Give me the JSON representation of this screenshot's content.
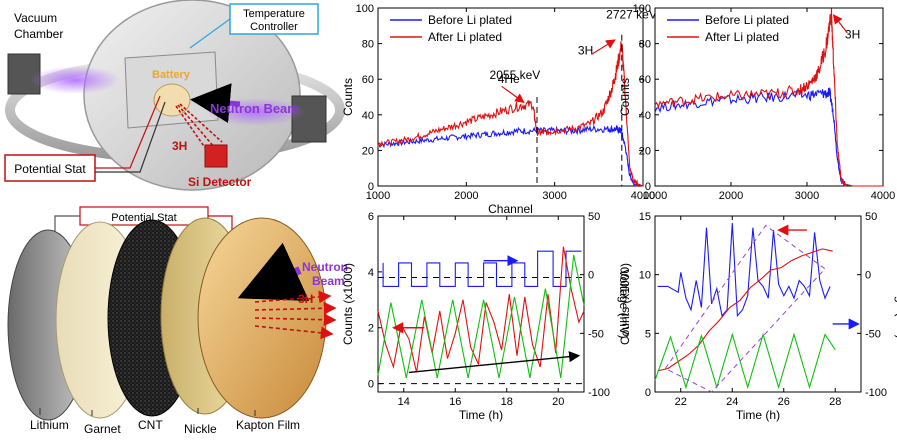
{
  "illustration": {
    "top": {
      "chamber_label_1": "Vacuum",
      "chamber_label_2": "Chamber",
      "temp_label_1": "Temperature",
      "temp_label_2": "Controller",
      "battery_label": "Battery",
      "beam_label": "Neutron Beam",
      "triton_label": "3H",
      "potential_label": "Potential Stat",
      "detector_label": "Si Detector"
    },
    "bottom": {
      "potential_label": "Potential Stat",
      "beam_label_1": "Neutron",
      "beam_label_2": "Beam",
      "triton_label": "3H",
      "layers": [
        "Lithium",
        "Garnet",
        "CNT",
        "Nickle",
        "Kapton Film"
      ]
    }
  },
  "chart_data": [
    {
      "id": "top-middle",
      "type": "line",
      "xlabel": "Channel",
      "ylabel": "Counts",
      "xlim": [
        1000,
        4000
      ],
      "ylim": [
        0,
        100
      ],
      "xticks": [
        1000,
        2000,
        3000,
        4000
      ],
      "yticks": [
        0,
        20,
        40,
        60,
        80,
        100
      ],
      "legend": "top-left",
      "series": [
        {
          "name": "Before Li plated",
          "color": "#1a1aff",
          "x": [
            1000,
            1200,
            1400,
            1600,
            1800,
            2000,
            2200,
            2400,
            2600,
            2800,
            3000,
            3200,
            3400,
            3600,
            3700,
            3750,
            3800,
            3850,
            3900,
            4000
          ],
          "y": [
            23,
            24,
            25,
            26,
            27,
            28,
            29,
            30,
            31,
            31,
            31,
            31,
            32,
            32,
            32,
            31,
            22,
            6,
            1,
            0
          ]
        },
        {
          "name": "After Li plated",
          "color": "#e01010",
          "x": [
            1000,
            1200,
            1400,
            1600,
            1800,
            2000,
            2200,
            2400,
            2600,
            2750,
            2800,
            2900,
            3000,
            3200,
            3400,
            3550,
            3650,
            3700,
            3760,
            3800,
            3850,
            3900,
            4000
          ],
          "y": [
            24,
            25,
            27,
            30,
            33,
            36,
            39,
            42,
            45,
            46,
            30,
            30,
            31,
            32,
            35,
            42,
            55,
            65,
            80,
            50,
            10,
            2,
            0
          ]
        }
      ],
      "annotations": [
        {
          "text": "4He",
          "x": 2480,
          "y": 58
        },
        {
          "text": "2055 keV",
          "x": 2550,
          "y": 60
        },
        {
          "text": "2727 keV",
          "x": 3870,
          "y": 94
        },
        {
          "text": "3H",
          "x": 3350,
          "y": 74
        }
      ]
    },
    {
      "id": "top-right",
      "type": "line",
      "xlabel": "",
      "ylabel": "Counts",
      "xlim": [
        1000,
        4000
      ],
      "ylim": [
        0,
        100
      ],
      "xticks": [
        1000,
        2000,
        3000,
        4000
      ],
      "yticks": [
        0,
        20,
        40,
        60,
        80,
        100
      ],
      "legend": "top-left",
      "series": [
        {
          "name": "Before Li plated",
          "color": "#1a1aff",
          "x": [
            1000,
            1400,
            1800,
            2200,
            2600,
            3000,
            3200,
            3300,
            3350,
            3400,
            3450,
            3500,
            3600,
            4000
          ],
          "y": [
            44,
            46,
            48,
            49,
            50,
            51,
            52,
            52,
            40,
            15,
            3,
            1,
            0,
            0
          ]
        },
        {
          "name": "After Li plated",
          "color": "#e01010",
          "x": [
            1000,
            1400,
            1800,
            2200,
            2600,
            2900,
            3050,
            3150,
            3250,
            3320,
            3360,
            3400,
            3450,
            3500,
            3600,
            4000
          ],
          "y": [
            46,
            48,
            50,
            51,
            52,
            54,
            58,
            64,
            78,
            97,
            60,
            22,
            4,
            1,
            0,
            0
          ]
        }
      ],
      "annotations": [
        {
          "text": "3H",
          "x": 3600,
          "y": 83
        }
      ]
    },
    {
      "id": "bottom-middle",
      "type": "line",
      "xlabel": "Time (h)",
      "ylabel": "Counts (x1000)",
      "y2label": "Voltage (mV)",
      "xlim": [
        13,
        21
      ],
      "ylim": [
        -0.3,
        6
      ],
      "y2lim": [
        -100,
        50
      ],
      "xticks": [
        14,
        16,
        18,
        20
      ],
      "yticks": [
        0,
        2,
        4,
        6
      ],
      "y2ticks": [
        50,
        0,
        -50,
        -100
      ],
      "series": [
        {
          "name": "Voltage",
          "color": "#1a1aff",
          "axis": "y2",
          "x": [
            13.2,
            13.2,
            13.8,
            13.8,
            14.3,
            14.3,
            14.9,
            14.9,
            15.4,
            15.4,
            16.0,
            16.0,
            16.5,
            16.5,
            17.1,
            17.1,
            17.6,
            17.6,
            18.2,
            18.2,
            18.7,
            18.7,
            19.2,
            19.2,
            19.8,
            19.8,
            20.3,
            20.3,
            20.9
          ],
          "y": [
            10,
            -10,
            -10,
            10,
            10,
            -10,
            -10,
            10,
            10,
            -10,
            -10,
            10,
            10,
            -10,
            -10,
            10,
            10,
            -10,
            -10,
            10,
            10,
            -10,
            -10,
            20,
            20,
            -10,
            -10,
            20,
            20
          ]
        },
        {
          "name": "Counts",
          "color": "#e01010",
          "axis": "y",
          "x": [
            13.0,
            13.3,
            13.6,
            13.9,
            14.2,
            14.5,
            14.8,
            15.1,
            15.4,
            15.7,
            16.0,
            16.3,
            16.6,
            16.9,
            17.2,
            17.5,
            17.8,
            18.1,
            18.4,
            18.7,
            19.0,
            19.3,
            19.6,
            19.9,
            20.2,
            20.5,
            20.8,
            21.0
          ],
          "y": [
            2.6,
            1.4,
            0.6,
            2.1,
            1.6,
            0.4,
            2.4,
            1.1,
            2.6,
            0.9,
            1.8,
            3.0,
            1.3,
            0.7,
            2.9,
            2.2,
            1.2,
            3.2,
            1.0,
            3.1,
            1.4,
            0.6,
            3.2,
            1.1,
            4.9,
            3.4,
            2.2,
            2.6
          ]
        },
        {
          "name": "Green",
          "color": "#10c010",
          "axis": "y",
          "x": [
            13.0,
            13.5,
            14.1,
            14.7,
            15.3,
            15.9,
            16.5,
            17.1,
            17.7,
            18.3,
            18.9,
            19.5,
            20.1,
            20.6,
            21.0
          ],
          "y": [
            0.3,
            2.9,
            0.2,
            3.0,
            0.2,
            3.0,
            0.2,
            3.0,
            0.2,
            3.1,
            0.2,
            3.4,
            0.2,
            4.6,
            2.8
          ]
        }
      ],
      "dashed_y": [
        0,
        3.8
      ],
      "annotations": [
        {
          "type": "arrow",
          "from": [
            14.2,
            0.4
          ],
          "to": [
            20.8,
            1.0
          ],
          "color": "#000"
        }
      ]
    },
    {
      "id": "bottom-right",
      "type": "line",
      "xlabel": "Time (h)",
      "ylabel": "Counts (x1000)",
      "y2label": "Voltage (mV)",
      "xlim": [
        21,
        29
      ],
      "ylim": [
        0,
        15
      ],
      "y2lim": [
        -100,
        50
      ],
      "xticks": [
        22,
        24,
        26,
        28
      ],
      "yticks": [
        0,
        5,
        10,
        15
      ],
      "y2ticks": [
        50,
        0,
        -50,
        -100
      ],
      "series": [
        {
          "name": "Voltage",
          "color": "#1a1aff",
          "axis": "y2",
          "x": [
            21.1,
            21.5,
            21.9,
            22.0,
            22.2,
            22.4,
            22.6,
            22.8,
            23.0,
            23.2,
            23.4,
            23.6,
            23.8,
            24.0,
            24.2,
            24.4,
            24.6,
            24.8,
            25.0,
            25.2,
            25.4,
            25.6,
            25.8,
            26.0,
            26.2,
            26.4,
            26.6,
            26.8,
            27.0,
            27.2,
            27.4,
            27.6,
            27.8
          ],
          "y": [
            -10,
            -10,
            -15,
            2,
            -20,
            -30,
            -5,
            -28,
            40,
            -25,
            -12,
            -35,
            -30,
            44,
            -35,
            -30,
            -18,
            40,
            -5,
            -10,
            -20,
            38,
            -8,
            -18,
            -10,
            -20,
            -5,
            -10,
            -18,
            36,
            -5,
            -20,
            -10
          ]
        },
        {
          "name": "Counts",
          "color": "#e01010",
          "axis": "y",
          "x": [
            21.1,
            21.5,
            21.9,
            22.3,
            22.7,
            23.1,
            23.5,
            23.9,
            24.3,
            24.7,
            25.1,
            25.5,
            25.9,
            26.3,
            26.7,
            27.1,
            27.5,
            27.9
          ],
          "y": [
            1.8,
            2.0,
            2.6,
            3.2,
            4.0,
            5.2,
            6.1,
            7.2,
            7.8,
            8.9,
            9.6,
            10.4,
            10.6,
            11.2,
            11.6,
            11.9,
            12.2,
            12.0
          ]
        },
        {
          "name": "Green",
          "color": "#10c010",
          "axis": "y",
          "x": [
            21.0,
            21.6,
            22.2,
            22.8,
            23.4,
            24.0,
            24.6,
            25.2,
            25.8,
            26.4,
            27.0,
            27.6,
            28.0
          ],
          "y": [
            1.0,
            4.7,
            0.4,
            4.8,
            0.4,
            4.9,
            0.4,
            4.9,
            0.4,
            4.9,
            0.4,
            4.9,
            3.6
          ]
        }
      ],
      "annotations": [
        {
          "type": "arrow",
          "from": [
            26.9,
            13.8
          ],
          "to": [
            25.8,
            13.8
          ],
          "color": "#e01010"
        },
        {
          "type": "arrow",
          "from": [
            27.9,
            -42
          ],
          "to": [
            28.9,
            -42
          ],
          "color": "#1a1aff",
          "axis": "y2"
        }
      ]
    }
  ]
}
